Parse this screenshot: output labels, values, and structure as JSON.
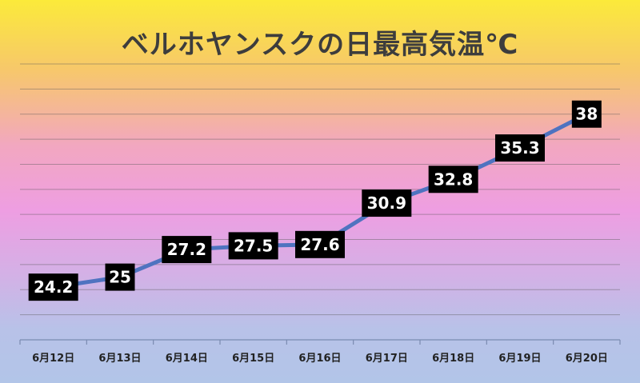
{
  "chart_data": {
    "type": "line",
    "title": "ベルホヤンスクの日最高気温℃",
    "categories": [
      "6月12日",
      "6月13日",
      "6月14日",
      "6月15日",
      "6月16日",
      "6月17日",
      "6月18日",
      "6月19日",
      "6月20日"
    ],
    "series": [
      {
        "values": [
          24.2,
          25,
          27.2,
          27.5,
          27.6,
          30.9,
          32.8,
          35.3,
          38
        ]
      }
    ],
    "ylim": [
      20,
      42
    ],
    "grid": true,
    "line_color": "#4f73c0",
    "label_bg": "#000000",
    "label_color": "#ffffff"
  }
}
